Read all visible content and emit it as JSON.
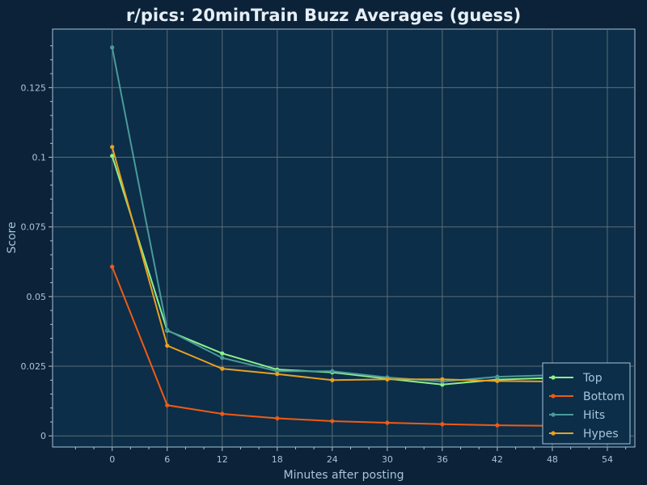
{
  "chart_data": {
    "type": "line",
    "title": "r/pics: 20minTrain Buzz Averages (guess)",
    "xlabel": "Minutes after posting",
    "ylabel": "Score",
    "xlim": [
      -6.5,
      57
    ],
    "ylim": [
      -0.004,
      0.146
    ],
    "x_ticks": [
      0,
      6,
      12,
      18,
      24,
      30,
      36,
      42,
      48,
      54
    ],
    "y_ticks": [
      0,
      0.025,
      0.05,
      0.075,
      0.1,
      0.125
    ],
    "y_tick_labels": [
      "0",
      "0.025",
      "0.05",
      "0.075",
      "0.1",
      "0.125"
    ],
    "grid": true,
    "legend_position": "bottom-right",
    "x": [
      0,
      6,
      12,
      18,
      24,
      30,
      36,
      42,
      48
    ],
    "series": [
      {
        "name": "Top",
        "color": "#8ef08a",
        "values": [
          0.1005,
          0.0378,
          0.0296,
          0.0238,
          0.0228,
          0.0205,
          0.0184,
          0.0202,
          0.0208
        ]
      },
      {
        "name": "Bottom",
        "color": "#f05a14",
        "values": [
          0.0607,
          0.011,
          0.0079,
          0.0063,
          0.0053,
          0.0047,
          0.0042,
          0.0038,
          0.0036
        ]
      },
      {
        "name": "Hits",
        "color": "#4a9a9a",
        "values": [
          0.1394,
          0.038,
          0.028,
          0.0232,
          0.0232,
          0.021,
          0.0195,
          0.0212,
          0.0218
        ]
      },
      {
        "name": "Hypes",
        "color": "#e8a020",
        "values": [
          0.1037,
          0.0324,
          0.0241,
          0.0222,
          0.02,
          0.0203,
          0.0203,
          0.0197,
          0.0195
        ]
      }
    ]
  }
}
